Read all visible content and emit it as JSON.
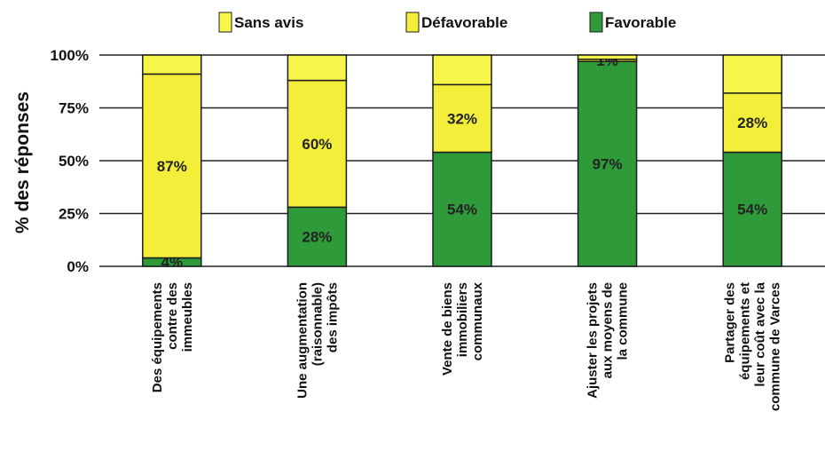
{
  "chart_data": {
    "type": "bar",
    "stacked": true,
    "percent": true,
    "ylabel": "% des réponses",
    "ylim": [
      0,
      100
    ],
    "yticks": [
      "0%",
      "25%",
      "50%",
      "75%",
      "100%"
    ],
    "grid": true,
    "legend_position": "top",
    "categories": [
      [
        "Des équipements",
        "contre des",
        "immeubles"
      ],
      [
        "Une augmentation",
        "(raisonnable)",
        "des impôts"
      ],
      [
        "Vente de biens",
        "immobiliers",
        "communaux"
      ],
      [
        "Ajuster les projets",
        "aux moyens de",
        "la commune"
      ],
      [
        "Partager des",
        "équipements et",
        "leur coût avec la",
        "commune de Varces"
      ]
    ],
    "series": [
      {
        "name": "Favorable",
        "color": "#2e9a3a",
        "values": [
          4,
          28,
          54,
          97,
          54
        ]
      },
      {
        "name": "Défavorable",
        "color": "#f2ee3a",
        "values": [
          87,
          60,
          32,
          1,
          28
        ]
      },
      {
        "name": "Sans avis",
        "color": "#f8f54a",
        "values": [
          9,
          12,
          14,
          2,
          18
        ]
      }
    ],
    "data_labels": [
      [
        "4%",
        "87%",
        ""
      ],
      [
        "28%",
        "60%",
        ""
      ],
      [
        "54%",
        "32%",
        ""
      ],
      [
        "97%",
        "1%",
        ""
      ],
      [
        "54%",
        "28%",
        ""
      ]
    ]
  }
}
